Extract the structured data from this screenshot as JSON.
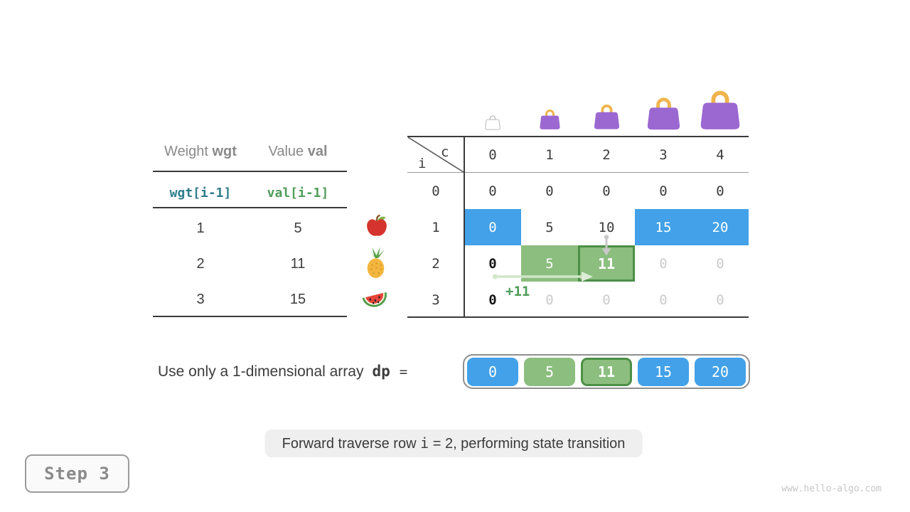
{
  "items_table": {
    "col1_header": {
      "text": "Weight",
      "code": "wgt"
    },
    "col2_header": {
      "text": "Value",
      "code": "val"
    },
    "formula_row": {
      "weight": "wgt[i-1]",
      "value": "val[i-1]"
    },
    "rows": [
      {
        "weight": "1",
        "value": "5",
        "fruit": "apple"
      },
      {
        "weight": "2",
        "value": "11",
        "fruit": "pineapple"
      },
      {
        "weight": "3",
        "value": "15",
        "fruit": "watermelon"
      }
    ]
  },
  "dp_table": {
    "corner_col_var": "c",
    "corner_row_var": "i",
    "col_headers": [
      "0",
      "1",
      "2",
      "3",
      "4"
    ],
    "row_headers": [
      "0",
      "1",
      "2",
      "3"
    ],
    "cells": [
      [
        "0",
        "0",
        "0",
        "0",
        "0"
      ],
      [
        "0",
        "5",
        "10",
        "15",
        "20"
      ],
      [
        "0",
        "5",
        "11",
        "0",
        "0"
      ],
      [
        "0",
        "0",
        "0",
        "0",
        "0"
      ]
    ],
    "cell_styles": [
      [
        "plain",
        "plain",
        "plain",
        "plain",
        "plain"
      ],
      [
        "blue",
        "plain",
        "plain",
        "blue",
        "blue"
      ],
      [
        "bold",
        "green",
        "green-active",
        "faded",
        "faded"
      ],
      [
        "bold",
        "faded",
        "faded",
        "faded",
        "faded"
      ]
    ],
    "annotation_plus": "+11",
    "bag_icons": [
      "bag-capacity-0-icon",
      "bag-capacity-1-icon",
      "bag-capacity-2-icon",
      "bag-capacity-3-icon",
      "bag-capacity-4-icon"
    ]
  },
  "dp_array": {
    "label": "Use only a 1-dimensional array",
    "var": "dp",
    "equals": "=",
    "cells": [
      {
        "value": "0",
        "style": "blue"
      },
      {
        "value": "5",
        "style": "green"
      },
      {
        "value": "11",
        "style": "green-active"
      },
      {
        "value": "15",
        "style": "blue"
      },
      {
        "value": "20",
        "style": "blue"
      }
    ]
  },
  "caption": {
    "before_var": "Forward traverse row ",
    "var": "i",
    "after_var": " = 2, performing state transition"
  },
  "meta": {
    "step_label": "Step 3",
    "watermark": "www.hello-algo.com"
  },
  "colors": {
    "blue": "#42a1e8",
    "green": "#8cbe7f",
    "green_active_border": "#4c8f46",
    "teal_code": "#2e7d8c",
    "green_code": "#4f9d5a",
    "purple_bag": "#9b68d1",
    "bag_handle": "#f0b44d",
    "faded_text": "#cbcbcb",
    "dark_text": "#3c3c3c",
    "gray_text": "#8a8a8a"
  }
}
